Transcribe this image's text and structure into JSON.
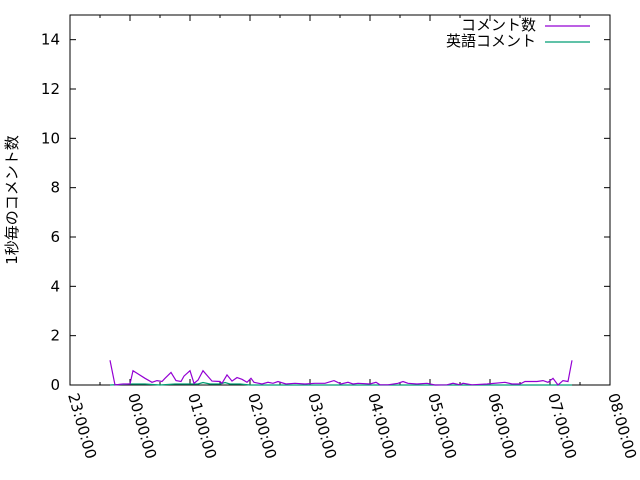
{
  "chart_data": {
    "type": "line",
    "title": "",
    "xlabel": "",
    "ylabel": "1秒毎のコメント数",
    "xlim": [
      "23:00:00",
      "08:00:00"
    ],
    "ylim": [
      0,
      15
    ],
    "x_ticks": [
      "23:00:00",
      "00:00:00",
      "01:00:00",
      "02:00:00",
      "03:00:00",
      "04:00:00",
      "05:00:00",
      "06:00:00",
      "07:00:00",
      "08:00:00"
    ],
    "y_ticks": [
      0,
      2,
      4,
      6,
      8,
      10,
      12,
      14
    ],
    "grid": false,
    "legend_position": "top-right",
    "series": [
      {
        "name": "コメント数",
        "color": "#9400d3",
        "x": [
          "23:40",
          "23:45",
          "23:53",
          "00:00",
          "00:03",
          "00:08",
          "00:15",
          "00:22",
          "00:27",
          "00:32",
          "00:35",
          "00:41",
          "00:46",
          "00:51",
          "00:54",
          "01:00",
          "01:04",
          "01:08",
          "01:13",
          "01:22",
          "01:30",
          "01:32",
          "01:37",
          "01:42",
          "01:47",
          "01:52",
          "01:57",
          "02:01",
          "02:04",
          "02:12",
          "02:18",
          "02:23",
          "02:28",
          "02:36",
          "02:45",
          "02:55",
          "03:05",
          "03:15",
          "03:24",
          "03:31",
          "03:38",
          "03:43",
          "03:48",
          "04:00",
          "04:06",
          "04:10",
          "04:18",
          "04:28",
          "04:33",
          "04:38",
          "04:47",
          "04:57",
          "05:05",
          "05:17",
          "05:23",
          "05:30",
          "05:33",
          "05:42",
          "05:57",
          "06:15",
          "06:22",
          "06:30",
          "06:35",
          "06:47",
          "06:53",
          "06:58",
          "07:03",
          "07:08",
          "07:13",
          "07:18",
          "07:22"
        ],
        "values": [
          1,
          0,
          0.04,
          0.04,
          0.58,
          0.45,
          0.27,
          0.11,
          0.18,
          0.14,
          0.27,
          0.51,
          0.18,
          0.14,
          0.36,
          0.58,
          0.07,
          0.2,
          0.58,
          0.16,
          0.14,
          0.07,
          0.41,
          0.16,
          0.3,
          0.23,
          0.11,
          0.27,
          0.11,
          0.04,
          0.11,
          0.07,
          0.14,
          0.04,
          0.07,
          0.04,
          0.07,
          0.07,
          0.18,
          0.04,
          0.11,
          0.04,
          0.07,
          0.04,
          0.11,
          0.01,
          0.01,
          0.07,
          0.14,
          0.07,
          0.04,
          0.07,
          0,
          0.01,
          0.07,
          0.01,
          0.07,
          0.01,
          0.04,
          0.11,
          0.04,
          0.04,
          0.14,
          0.14,
          0.18,
          0.11,
          0.27,
          0,
          0.18,
          0.14,
          1
        ]
      },
      {
        "name": "英語コメント",
        "color": "#009e73",
        "x": [
          "23:40",
          "00:00",
          "00:15",
          "00:30",
          "00:45",
          "01:00",
          "01:08",
          "01:13",
          "01:20",
          "01:30",
          "01:35",
          "01:40",
          "01:50",
          "02:00",
          "03:00",
          "04:00",
          "05:00",
          "06:00",
          "07:00",
          "07:22"
        ],
        "values": [
          0,
          0.04,
          0.04,
          0,
          0.04,
          0.04,
          0.04,
          0.1,
          0.04,
          0.04,
          0.1,
          0.04,
          0.04,
          0,
          0,
          0,
          0,
          0,
          0,
          0
        ]
      }
    ]
  }
}
